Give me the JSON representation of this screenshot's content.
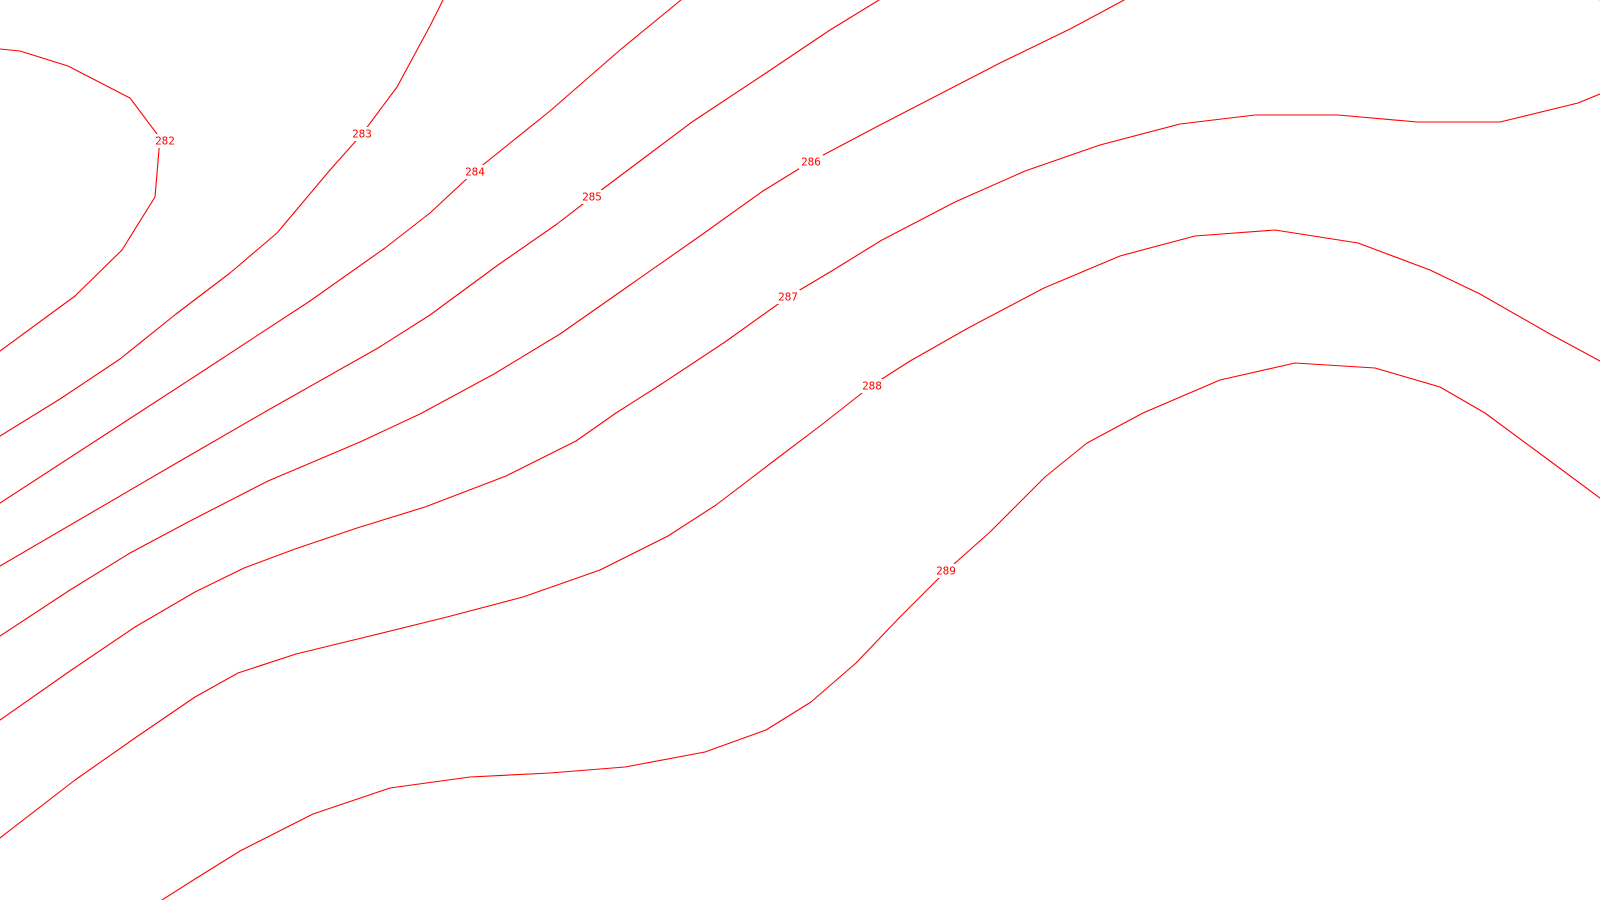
{
  "map": {
    "line_color": "#ff0000",
    "background_color": "#ffffff",
    "contours": [
      {
        "value": "282"
      },
      {
        "value": "283"
      },
      {
        "value": "284"
      },
      {
        "value": "285"
      },
      {
        "value": "286"
      },
      {
        "value": "287"
      },
      {
        "value": "288"
      },
      {
        "value": "289"
      },
      {
        "value": ""
      }
    ]
  }
}
